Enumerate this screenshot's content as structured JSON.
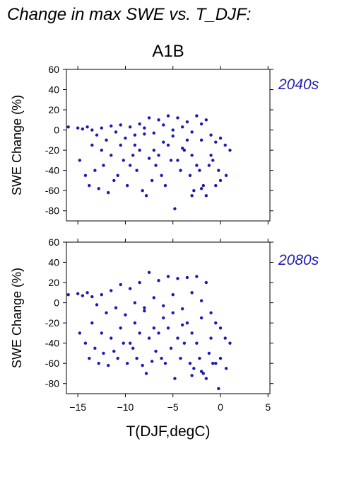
{
  "figure": {
    "title": "Change in max SWE vs. T_DJF:",
    "scenario": "A1B",
    "colors": {
      "points": "#1a1ab4",
      "period_label": "#2020b0",
      "axes": "#000000"
    }
  },
  "chart_data": [
    {
      "type": "scatter",
      "panel_label": "2040s",
      "xlabel": "",
      "ylabel": "SWE Change (%)",
      "xlim": [
        -16.2,
        5.2
      ],
      "ylim": [
        -90,
        60
      ],
      "xticks": [
        -15,
        -10,
        -5,
        0,
        5
      ],
      "yticks": [
        60,
        40,
        20,
        0,
        -20,
        -40,
        -60,
        -80
      ],
      "xtick_labels_visible": false,
      "grid": false,
      "series": [
        {
          "note_x_y_pairs": true,
          "points": [
            [
              -16,
              3
            ],
            [
              -15,
              2
            ],
            [
              -14.5,
              1
            ],
            [
              -14,
              3
            ],
            [
              -13.5,
              0
            ],
            [
              -13,
              -5
            ],
            [
              -12.5,
              2
            ],
            [
              -12,
              -10
            ],
            [
              -11.5,
              4
            ],
            [
              -11,
              -2
            ],
            [
              -10.5,
              5
            ],
            [
              -10,
              -8
            ],
            [
              -9.5,
              3
            ],
            [
              -9,
              -15
            ],
            [
              -8.5,
              6
            ],
            [
              -8,
              -4
            ],
            [
              -7.5,
              12
            ],
            [
              -7,
              -20
            ],
            [
              -6.5,
              10
            ],
            [
              -6,
              -12
            ],
            [
              -5.5,
              14
            ],
            [
              -5,
              -6
            ],
            [
              -4.5,
              12
            ],
            [
              -4,
              -18
            ],
            [
              -3.5,
              8
            ],
            [
              -3,
              -25
            ],
            [
              -2.5,
              14
            ],
            [
              -2,
              -10
            ],
            [
              -1.5,
              10
            ],
            [
              -1,
              -5
            ],
            [
              -0.5,
              -12
            ],
            [
              0,
              -8
            ],
            [
              0.5,
              -15
            ],
            [
              1,
              -20
            ],
            [
              -14.8,
              -30
            ],
            [
              -14.2,
              -45
            ],
            [
              -13.8,
              -55
            ],
            [
              -13.2,
              -40
            ],
            [
              -12.8,
              -58
            ],
            [
              -12.3,
              -35
            ],
            [
              -11.8,
              -62
            ],
            [
              -11.2,
              -50
            ],
            [
              -10.8,
              -45
            ],
            [
              -10.2,
              -30
            ],
            [
              -9.8,
              -55
            ],
            [
              -9.2,
              -25
            ],
            [
              -8.8,
              -40
            ],
            [
              -8.2,
              -60
            ],
            [
              -7.8,
              -65
            ],
            [
              -7.2,
              -50
            ],
            [
              -6.8,
              -35
            ],
            [
              -6.2,
              -45
            ],
            [
              -5.8,
              -55
            ],
            [
              -5.2,
              -30
            ],
            [
              -4.8,
              -78
            ],
            [
              -4.2,
              -40
            ],
            [
              -3.8,
              -20
            ],
            [
              -3.2,
              -45
            ],
            [
              -2.8,
              -60
            ],
            [
              -2.2,
              -40
            ],
            [
              -1.8,
              -55
            ],
            [
              -1.2,
              -35
            ],
            [
              -0.8,
              -30
            ],
            [
              -0.2,
              -40
            ],
            [
              0.6,
              -45
            ],
            [
              -9,
              -5
            ],
            [
              -8,
              2
            ],
            [
              -7,
              -3
            ],
            [
              -6,
              5
            ],
            [
              -5,
              0
            ],
            [
              -4,
              3
            ],
            [
              -3,
              -2
            ],
            [
              -2,
              6
            ],
            [
              -6.5,
              -25
            ],
            [
              -5.5,
              -15
            ],
            [
              -4.5,
              -30
            ],
            [
              -3.5,
              -10
            ],
            [
              -2.5,
              -35
            ],
            [
              -7.5,
              -28
            ],
            [
              -8.5,
              -20
            ],
            [
              -9.5,
              -35
            ],
            [
              -10.5,
              -15
            ],
            [
              -11.5,
              -25
            ],
            [
              -12.5,
              -20
            ],
            [
              -13.5,
              -15
            ],
            [
              -1,
              -25
            ],
            [
              0,
              -50
            ],
            [
              -0.5,
              -55
            ],
            [
              -1.5,
              -65
            ],
            [
              -2,
              -58
            ],
            [
              -3,
              -65
            ]
          ]
        }
      ]
    },
    {
      "type": "scatter",
      "panel_label": "2080s",
      "xlabel": "T(DJF,degC)",
      "ylabel": "SWE Change (%)",
      "xlim": [
        -16.2,
        5.2
      ],
      "ylim": [
        -90,
        60
      ],
      "xticks": [
        -15,
        -10,
        -5,
        0,
        5
      ],
      "xtick_labels": [
        "−15",
        "−10",
        "−5",
        "0",
        "5"
      ],
      "yticks": [
        60,
        40,
        20,
        0,
        -20,
        -40,
        -60,
        -80
      ],
      "grid": false,
      "series": [
        {
          "points": [
            [
              -16,
              8
            ],
            [
              -15,
              9
            ],
            [
              -14.5,
              7
            ],
            [
              -14,
              10
            ],
            [
              -13.5,
              6
            ],
            [
              -13,
              -2
            ],
            [
              -12.5,
              8
            ],
            [
              -12,
              -10
            ],
            [
              -11.5,
              12
            ],
            [
              -11,
              -5
            ],
            [
              -10.5,
              18
            ],
            [
              -10,
              -12
            ],
            [
              -9.5,
              14
            ],
            [
              -9,
              -20
            ],
            [
              -8.5,
              20
            ],
            [
              -8,
              -8
            ],
            [
              -7.5,
              30
            ],
            [
              -7,
              -25
            ],
            [
              -6.5,
              22
            ],
            [
              -6,
              -15
            ],
            [
              -5.5,
              26
            ],
            [
              -5,
              -10
            ],
            [
              -4.5,
              24
            ],
            [
              -4,
              -22
            ],
            [
              -3.5,
              25
            ],
            [
              -3,
              -30
            ],
            [
              -2.5,
              26
            ],
            [
              -2,
              -15
            ],
            [
              -1.5,
              20
            ],
            [
              -1,
              -10
            ],
            [
              -0.5,
              -20
            ],
            [
              0,
              -25
            ],
            [
              0.5,
              -35
            ],
            [
              1,
              -40
            ],
            [
              -14.8,
              -30
            ],
            [
              -14.2,
              -40
            ],
            [
              -13.8,
              -55
            ],
            [
              -13.2,
              -45
            ],
            [
              -12.8,
              -60
            ],
            [
              -12.3,
              -50
            ],
            [
              -11.8,
              -62
            ],
            [
              -11.2,
              -48
            ],
            [
              -10.8,
              -55
            ],
            [
              -10.2,
              -40
            ],
            [
              -9.8,
              -60
            ],
            [
              -9.2,
              -45
            ],
            [
              -8.8,
              -55
            ],
            [
              -8.2,
              -62
            ],
            [
              -7.8,
              -70
            ],
            [
              -7.2,
              -58
            ],
            [
              -6.8,
              -48
            ],
            [
              -6.2,
              -55
            ],
            [
              -5.8,
              -60
            ],
            [
              -5.2,
              -45
            ],
            [
              -4.8,
              -75
            ],
            [
              -4.2,
              -55
            ],
            [
              -3.8,
              -40
            ],
            [
              -3.2,
              -60
            ],
            [
              -2.8,
              -65
            ],
            [
              -2.2,
              -55
            ],
            [
              -1.8,
              -70
            ],
            [
              -1.2,
              -50
            ],
            [
              -0.8,
              -60
            ],
            [
              -0.2,
              -85
            ],
            [
              0.6,
              -65
            ],
            [
              -9,
              0
            ],
            [
              -8,
              -5
            ],
            [
              -7,
              5
            ],
            [
              -6,
              -3
            ],
            [
              -5,
              8
            ],
            [
              -4,
              -6
            ],
            [
              -3,
              10
            ],
            [
              -2,
              2
            ],
            [
              -6.5,
              -30
            ],
            [
              -5.5,
              -25
            ],
            [
              -4.5,
              -35
            ],
            [
              -3.5,
              -20
            ],
            [
              -2.5,
              -40
            ],
            [
              -7.5,
              -35
            ],
            [
              -8.5,
              -30
            ],
            [
              -9.5,
              -40
            ],
            [
              -10.5,
              -25
            ],
            [
              -11.5,
              -35
            ],
            [
              -12.5,
              -30
            ],
            [
              -13.5,
              -20
            ],
            [
              -1,
              -35
            ],
            [
              0,
              -55
            ],
            [
              -0.5,
              -60
            ],
            [
              -1.5,
              -75
            ],
            [
              -2,
              -68
            ],
            [
              -3,
              -72
            ]
          ]
        }
      ]
    }
  ]
}
